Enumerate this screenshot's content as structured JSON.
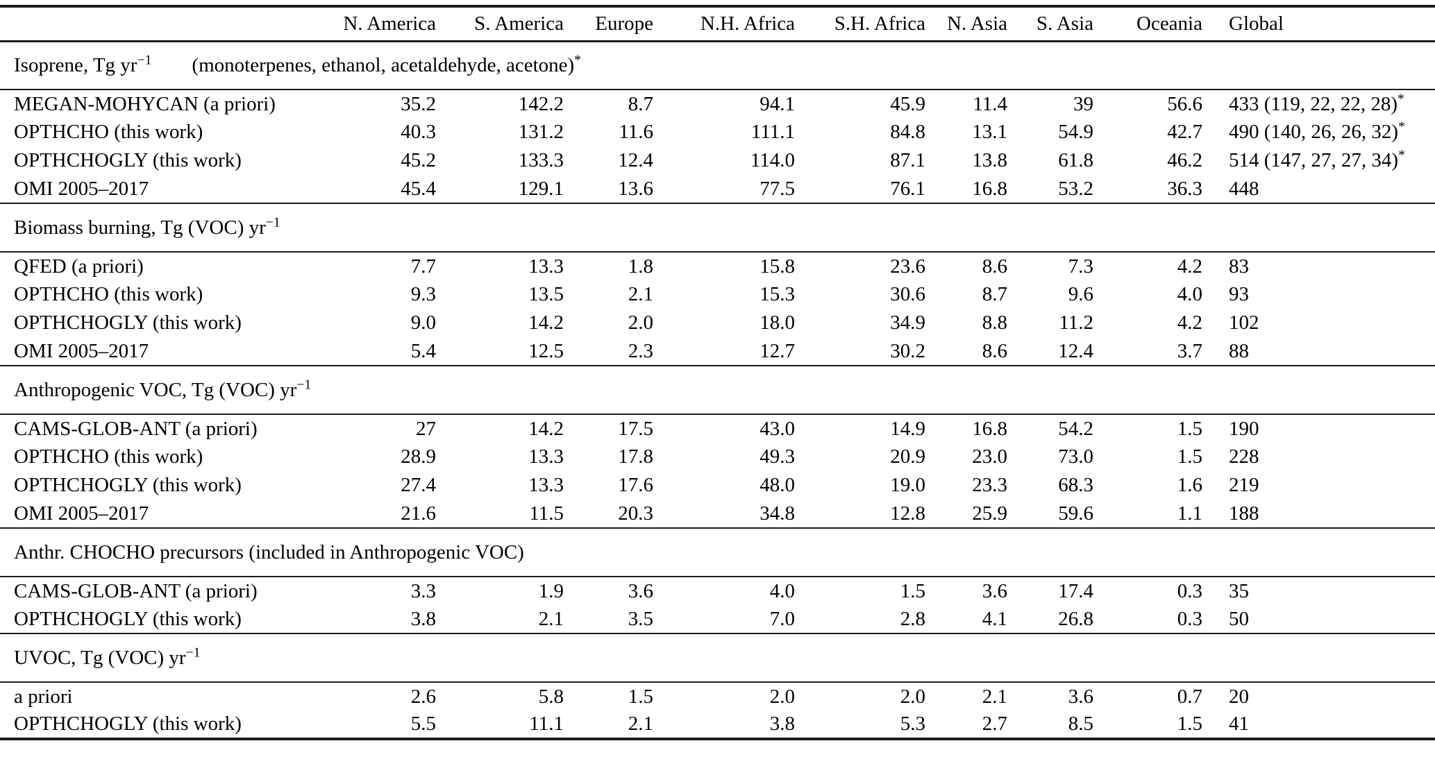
{
  "table": {
    "columns": [
      "",
      "N. America",
      "S. America",
      "Europe",
      "N.H. Africa",
      "S.H. Africa",
      "N. Asia",
      "S. Asia",
      "Oceania",
      "Global"
    ],
    "sections": [
      {
        "title": "Isoprene, Tg yr",
        "title_sup": "−1",
        "note": "(monoterpenes, ethanol, acetaldehyde, acetone)",
        "note_sup": "*",
        "rows": [
          {
            "label": "MEGAN-MOHYCAN (a priori)",
            "values": [
              "35.2",
              "142.2",
              "8.7",
              "94.1",
              "45.9",
              "11.4",
              "39",
              "56.6"
            ],
            "global": "433 (119, 22, 22, 28)",
            "global_sup": "*"
          },
          {
            "label": "OPTHCHO (this work)",
            "values": [
              "40.3",
              "131.2",
              "11.6",
              "111.1",
              "84.8",
              "13.1",
              "54.9",
              "42.7"
            ],
            "global": "490 (140, 26, 26, 32)",
            "global_sup": "*"
          },
          {
            "label": "OPTHCHOGLY (this work)",
            "values": [
              "45.2",
              "133.3",
              "12.4",
              "114.0",
              "87.1",
              "13.8",
              "61.8",
              "46.2"
            ],
            "global": "514 (147, 27, 27, 34)",
            "global_sup": "*"
          },
          {
            "label": "OMI 2005–2017",
            "values": [
              "45.4",
              "129.1",
              "13.6",
              "77.5",
              "76.1",
              "16.8",
              "53.2",
              "36.3"
            ],
            "global": "448",
            "global_sup": ""
          }
        ]
      },
      {
        "title": "Biomass burning, Tg (VOC) yr",
        "title_sup": "−1",
        "note": "",
        "note_sup": "",
        "rows": [
          {
            "label": "QFED (a priori)",
            "values": [
              "7.7",
              "13.3",
              "1.8",
              "15.8",
              "23.6",
              "8.6",
              "7.3",
              "4.2"
            ],
            "global": "83",
            "global_sup": ""
          },
          {
            "label": "OPTHCHO (this work)",
            "values": [
              "9.3",
              "13.5",
              "2.1",
              "15.3",
              "30.6",
              "8.7",
              "9.6",
              "4.0"
            ],
            "global": "93",
            "global_sup": ""
          },
          {
            "label": "OPTHCHOGLY (this work)",
            "values": [
              "9.0",
              "14.2",
              "2.0",
              "18.0",
              "34.9",
              "8.8",
              "11.2",
              "4.2"
            ],
            "global": "102",
            "global_sup": ""
          },
          {
            "label": "OMI 2005–2017",
            "values": [
              "5.4",
              "12.5",
              "2.3",
              "12.7",
              "30.2",
              "8.6",
              "12.4",
              "3.7"
            ],
            "global": "88",
            "global_sup": ""
          }
        ]
      },
      {
        "title": "Anthropogenic VOC, Tg (VOC) yr",
        "title_sup": "−1",
        "note": "",
        "note_sup": "",
        "rows": [
          {
            "label": "CAMS-GLOB-ANT (a priori)",
            "values": [
              "27",
              "14.2",
              "17.5",
              "43.0",
              "14.9",
              "16.8",
              "54.2",
              "1.5"
            ],
            "global": "190",
            "global_sup": ""
          },
          {
            "label": "OPTHCHO (this work)",
            "values": [
              "28.9",
              "13.3",
              "17.8",
              "49.3",
              "20.9",
              "23.0",
              "73.0",
              "1.5"
            ],
            "global": "228",
            "global_sup": ""
          },
          {
            "label": "OPTHCHOGLY (this work)",
            "values": [
              "27.4",
              "13.3",
              "17.6",
              "48.0",
              "19.0",
              "23.3",
              "68.3",
              "1.6"
            ],
            "global": "219",
            "global_sup": ""
          },
          {
            "label": "OMI 2005–2017",
            "values": [
              "21.6",
              "11.5",
              "20.3",
              "34.8",
              "12.8",
              "25.9",
              "59.6",
              "1.1"
            ],
            "global": "188",
            "global_sup": ""
          }
        ]
      },
      {
        "title": "Anthr. CHOCHO precursors (included in Anthropogenic VOC)",
        "title_sup": "",
        "note": "",
        "note_sup": "",
        "rows": [
          {
            "label": "CAMS-GLOB-ANT (a priori)",
            "values": [
              "3.3",
              "1.9",
              "3.6",
              "4.0",
              "1.5",
              "3.6",
              "17.4",
              "0.3"
            ],
            "global": "35",
            "global_sup": ""
          },
          {
            "label": "OPTHCHOGLY (this work)",
            "values": [
              "3.8",
              "2.1",
              "3.5",
              "7.0",
              "2.8",
              "4.1",
              "26.8",
              "0.3"
            ],
            "global": "50",
            "global_sup": ""
          }
        ]
      },
      {
        "title": "UVOC, Tg (VOC) yr",
        "title_sup": "−1",
        "note": "",
        "note_sup": "",
        "rows": [
          {
            "label": "a priori",
            "values": [
              "2.6",
              "5.8",
              "1.5",
              "2.0",
              "2.0",
              "2.1",
              "3.6",
              "0.7"
            ],
            "global": "20",
            "global_sup": ""
          },
          {
            "label": "OPTHCHOGLY (this work)",
            "values": [
              "5.5",
              "11.1",
              "2.1",
              "3.8",
              "5.3",
              "2.7",
              "8.5",
              "1.5"
            ],
            "global": "41",
            "global_sup": ""
          }
        ]
      }
    ]
  }
}
